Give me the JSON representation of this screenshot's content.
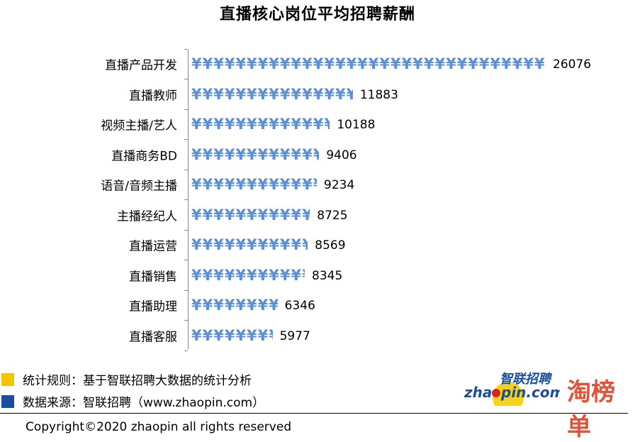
{
  "chart_data": {
    "type": "bar",
    "orientation": "horizontal",
    "title": "直播核心岗位平均招聘薪酬",
    "categories": [
      "直播产品开发",
      "直播教师",
      "视频主播/艺人",
      "直播商务BD",
      "语音/音频主播",
      "主播经纪人",
      "直播运营",
      "直播销售",
      "直播助理",
      "直播客服"
    ],
    "values": [
      26076,
      11883,
      10188,
      9406,
      9234,
      8725,
      8569,
      8345,
      6346,
      5977
    ],
    "bar_glyph": "¥",
    "bar_color": "#5b8fd6",
    "data_labels": true,
    "grid": false
  },
  "legend": [
    {
      "text": "统计规则：基于智联招聘大数据的统计分析",
      "color": "#f5c400"
    },
    {
      "text": "数据来源：智联招聘（www.zhaopin.com）",
      "color": "#1a4fa0"
    }
  ],
  "logos": {
    "zhaopin": "智联招聘 zhaopin.com",
    "taobangdan": "淘榜单"
  },
  "footer": {
    "copyright": "Copyright©2020 zhaopin all rights reserved"
  }
}
